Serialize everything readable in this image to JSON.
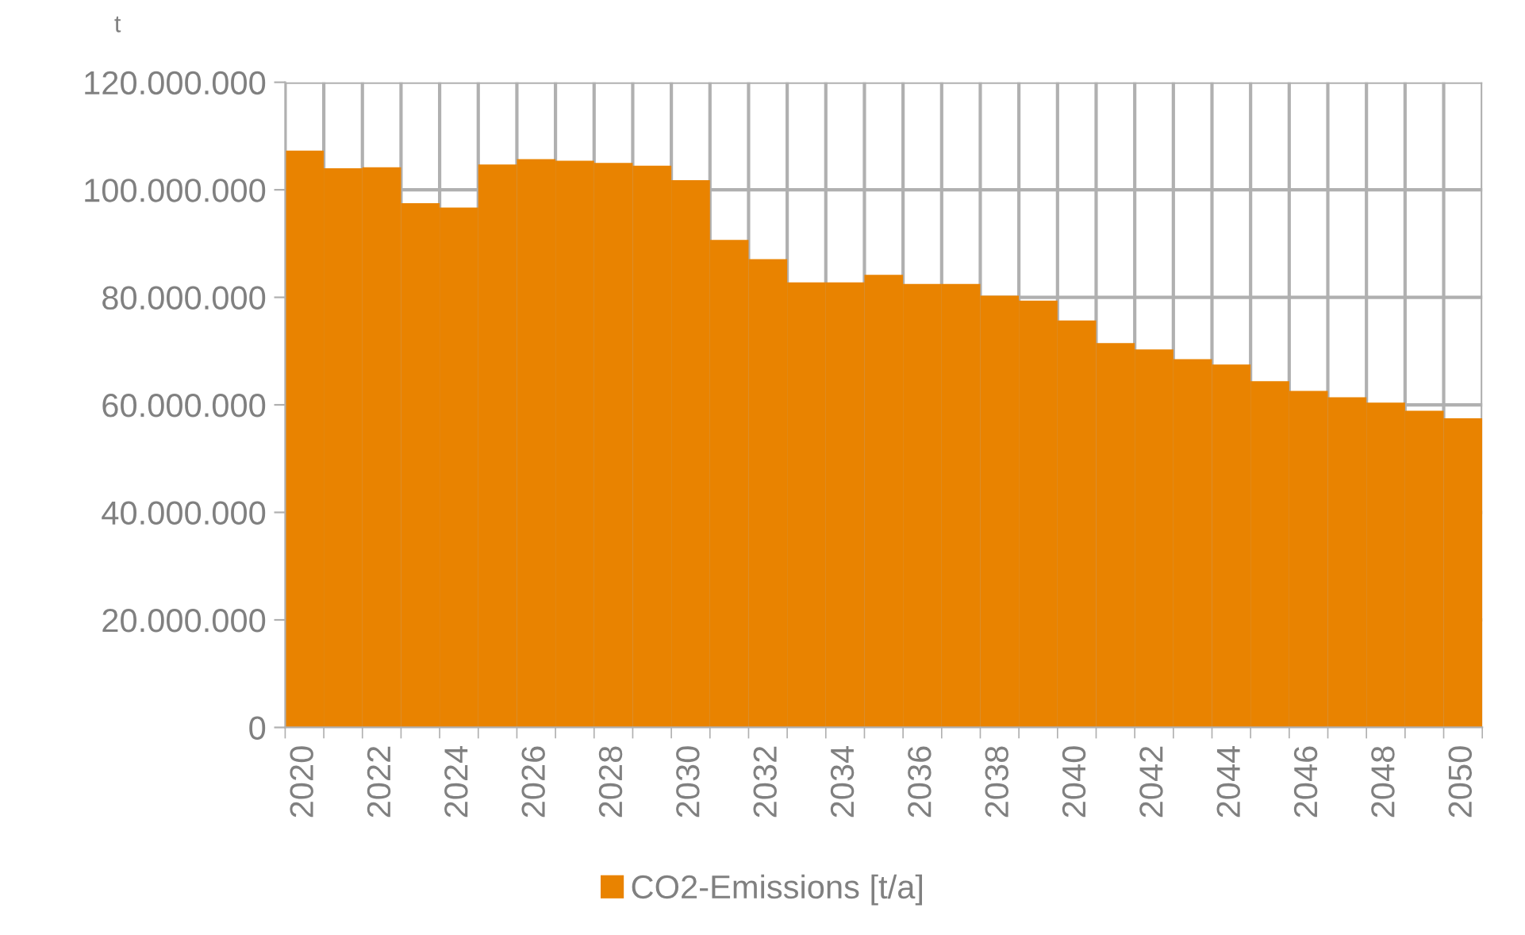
{
  "chart_data": {
    "type": "bar",
    "ylabel": "t",
    "categories": [
      "2020",
      null,
      "2022",
      null,
      "2024",
      null,
      "2026",
      null,
      "2028",
      null,
      "2030",
      null,
      "2032",
      null,
      "2034",
      null,
      "2036",
      null,
      "2038",
      null,
      "2040",
      null,
      "2042",
      null,
      "2044",
      null,
      "2046",
      null,
      "2048",
      null,
      "2050"
    ],
    "series": [
      {
        "name": "CO2-Emissions [t/a]",
        "color": "#e98300",
        "values": [
          107300000,
          104000000,
          104200000,
          97500000,
          96700000,
          104700000,
          105700000,
          105400000,
          105000000,
          104500000,
          101800000,
          90700000,
          87100000,
          82800000,
          82800000,
          84200000,
          82500000,
          82500000,
          80300000,
          79400000,
          75700000,
          71500000,
          70300000,
          68500000,
          67500000,
          64400000,
          62600000,
          61400000,
          60400000,
          58900000,
          57500000
        ]
      }
    ],
    "ylim": [
      0,
      120000000
    ],
    "yticks": [
      {
        "value": 0,
        "label": "0"
      },
      {
        "value": 20000000,
        "label": "20.000.000"
      },
      {
        "value": 40000000,
        "label": "40.000.000"
      },
      {
        "value": 60000000,
        "label": "60.000.000"
      },
      {
        "value": 80000000,
        "label": "80.000.000"
      },
      {
        "value": 100000000,
        "label": "100.000.000"
      },
      {
        "value": 120000000,
        "label": "120.000.000"
      }
    ],
    "grid": true,
    "legend": "bottom"
  }
}
